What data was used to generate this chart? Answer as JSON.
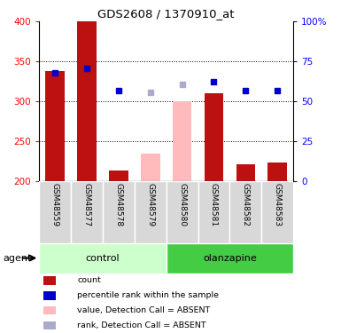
{
  "title": "GDS2608 / 1370910_at",
  "samples": [
    "GSM48559",
    "GSM48577",
    "GSM48578",
    "GSM48579",
    "GSM48580",
    "GSM48581",
    "GSM48582",
    "GSM48583"
  ],
  "bar_values": [
    338,
    400,
    214,
    235,
    300,
    310,
    221,
    224
  ],
  "bar_colors": [
    "#bb1111",
    "#bb1111",
    "#bb1111",
    null,
    null,
    "#bb1111",
    "#bb1111",
    "#bb1111"
  ],
  "bar_colors_absent": [
    null,
    null,
    null,
    "#ffbbbb",
    "#ffbbbb",
    null,
    null,
    null
  ],
  "rank_values": [
    336,
    342,
    314,
    312,
    322,
    325,
    314,
    314
  ],
  "rank_colors": [
    "#0000cc",
    "#0000cc",
    "#0000cc",
    null,
    null,
    "#0000cc",
    "#0000cc",
    "#0000cc"
  ],
  "rank_colors_absent": [
    null,
    null,
    null,
    "#aaaacc",
    "#aaaacc",
    null,
    null,
    null
  ],
  "ylim": [
    200,
    400
  ],
  "yticks": [
    200,
    250,
    300,
    350,
    400
  ],
  "right_yticks": [
    0,
    25,
    50,
    75,
    100
  ],
  "right_yticklabels": [
    "0",
    "25",
    "50",
    "75",
    "100%"
  ],
  "control_color_light": "#ccffcc",
  "olanzapine_color_dark": "#44cc44",
  "bar_width": 0.6,
  "legend_items": [
    {
      "label": "count",
      "color": "#bb1111"
    },
    {
      "label": "percentile rank within the sample",
      "color": "#0000cc"
    },
    {
      "label": "value, Detection Call = ABSENT",
      "color": "#ffbbbb"
    },
    {
      "label": "rank, Detection Call = ABSENT",
      "color": "#aaaacc"
    }
  ]
}
